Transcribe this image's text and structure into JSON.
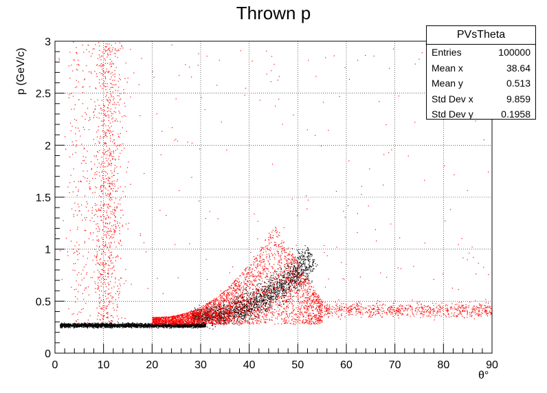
{
  "title": "Thrown p",
  "stats": {
    "name": "PVsTheta",
    "rows": [
      {
        "label": "Entries",
        "value": "100000"
      },
      {
        "label": "Mean x",
        "value": "38.64"
      },
      {
        "label": "Mean y",
        "value": "0.513"
      },
      {
        "label": "Std Dev x",
        "value": "9.859"
      },
      {
        "label": "Std Dev y",
        "value": "0.1958"
      }
    ]
  },
  "chart_data": {
    "type": "scatter",
    "title": "Thrown p",
    "xlabel": "θ°",
    "ylabel": "p (GeV/c)",
    "xlim": [
      0,
      90
    ],
    "ylim": [
      0,
      3
    ],
    "xticks": [
      0,
      10,
      20,
      30,
      40,
      50,
      60,
      70,
      80,
      90
    ],
    "yticks": [
      0,
      0.5,
      1,
      1.5,
      2,
      2.5,
      3
    ],
    "ytick_labels": [
      "0",
      "0.5",
      "1",
      "1.5",
      "2",
      "2.5",
      "3"
    ],
    "grid": true,
    "series": [
      {
        "color": "#000000",
        "regions": [
          {
            "x_range": [
              1,
              30
            ],
            "y_center": 0.27,
            "y_spread": 0.03
          },
          {
            "x_range": [
              30,
              55
            ],
            "y_center": 0.7,
            "y_spread": 0.3
          }
        ]
      },
      {
        "color": "#ff0000",
        "regions": [
          {
            "x_range": [
              20,
              55
            ],
            "y_center": 0.6,
            "y_spread": 0.3
          },
          {
            "x_range": [
              3,
              20
            ],
            "y_center": 1.6,
            "y_spread": 1.3
          },
          {
            "x_range": [
              55,
              90
            ],
            "y_center": 0.42,
            "y_spread": 0.1
          }
        ]
      }
    ]
  }
}
